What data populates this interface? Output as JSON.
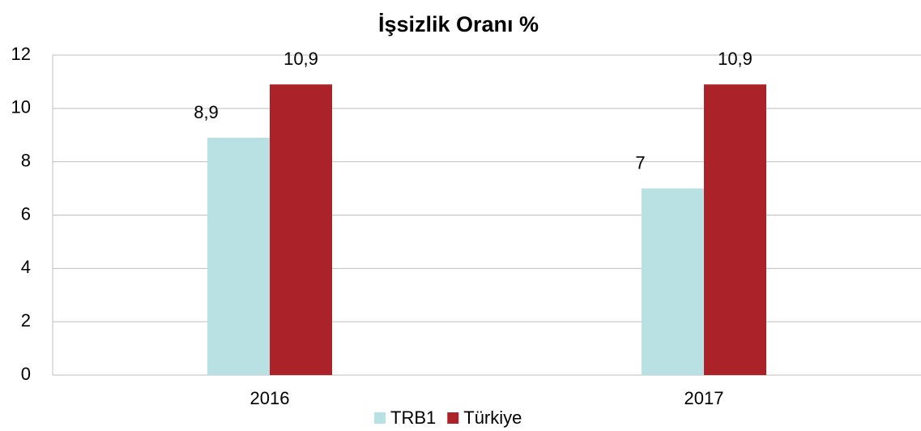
{
  "chart_data": {
    "type": "bar",
    "title": "İşsizlik Oranı %",
    "categories": [
      "2016",
      "2017"
    ],
    "series": [
      {
        "name": "TRB1",
        "color": "#b9e0e3",
        "values": [
          8.9,
          7
        ],
        "value_labels": [
          "8,9",
          "7"
        ]
      },
      {
        "name": "Türkiye",
        "color": "#ab2328",
        "values": [
          10.9,
          10.9
        ],
        "value_labels": [
          "10,9",
          "10,9"
        ]
      }
    ],
    "ylim": [
      0,
      12
    ],
    "yticks": [
      0,
      2,
      4,
      6,
      8,
      10,
      12
    ],
    "grid": true,
    "legend": "bottom"
  }
}
